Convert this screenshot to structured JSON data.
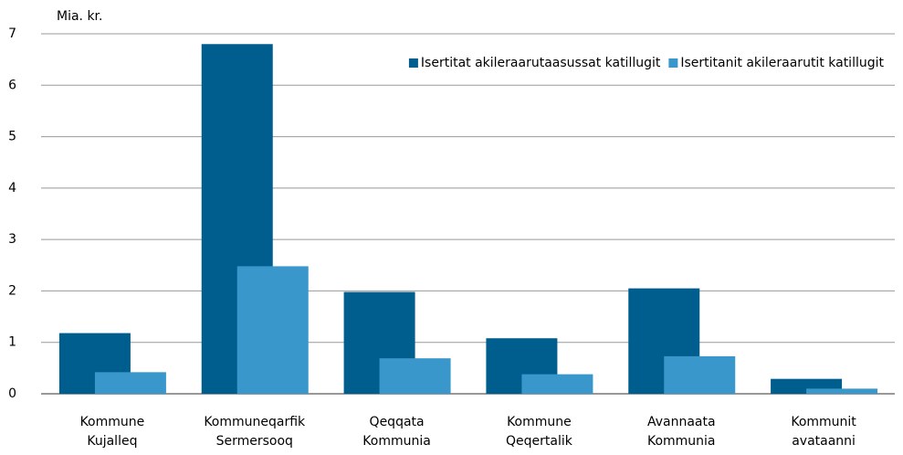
{
  "chart_data": {
    "type": "bar",
    "y_axis_label": "Mia. kr.",
    "categories": [
      [
        "Kommune",
        "Kujalleq"
      ],
      [
        "Kommuneqarfik",
        "Sermersooq"
      ],
      [
        "Qeqqata",
        "Kommunia"
      ],
      [
        "Kommune",
        "Qeqertalik"
      ],
      [
        "Avannaata",
        "Kommunia"
      ],
      [
        "Kommunit",
        "avataanni"
      ]
    ],
    "series": [
      {
        "name": "Isertitat akileraarutaasussat katillugit",
        "color": "#005e8e",
        "values": [
          1.18,
          6.8,
          1.98,
          1.08,
          2.05,
          0.29
        ]
      },
      {
        "name": "Isertitanit akileraarutit katillugit",
        "color": "#3a97cb",
        "values": [
          0.42,
          2.48,
          0.69,
          0.38,
          0.73,
          0.1
        ]
      }
    ],
    "ylim": [
      0,
      7
    ],
    "yticks": [
      0,
      1,
      2,
      3,
      4,
      5,
      6,
      7
    ],
    "grid": true,
    "legend": "top-right"
  }
}
